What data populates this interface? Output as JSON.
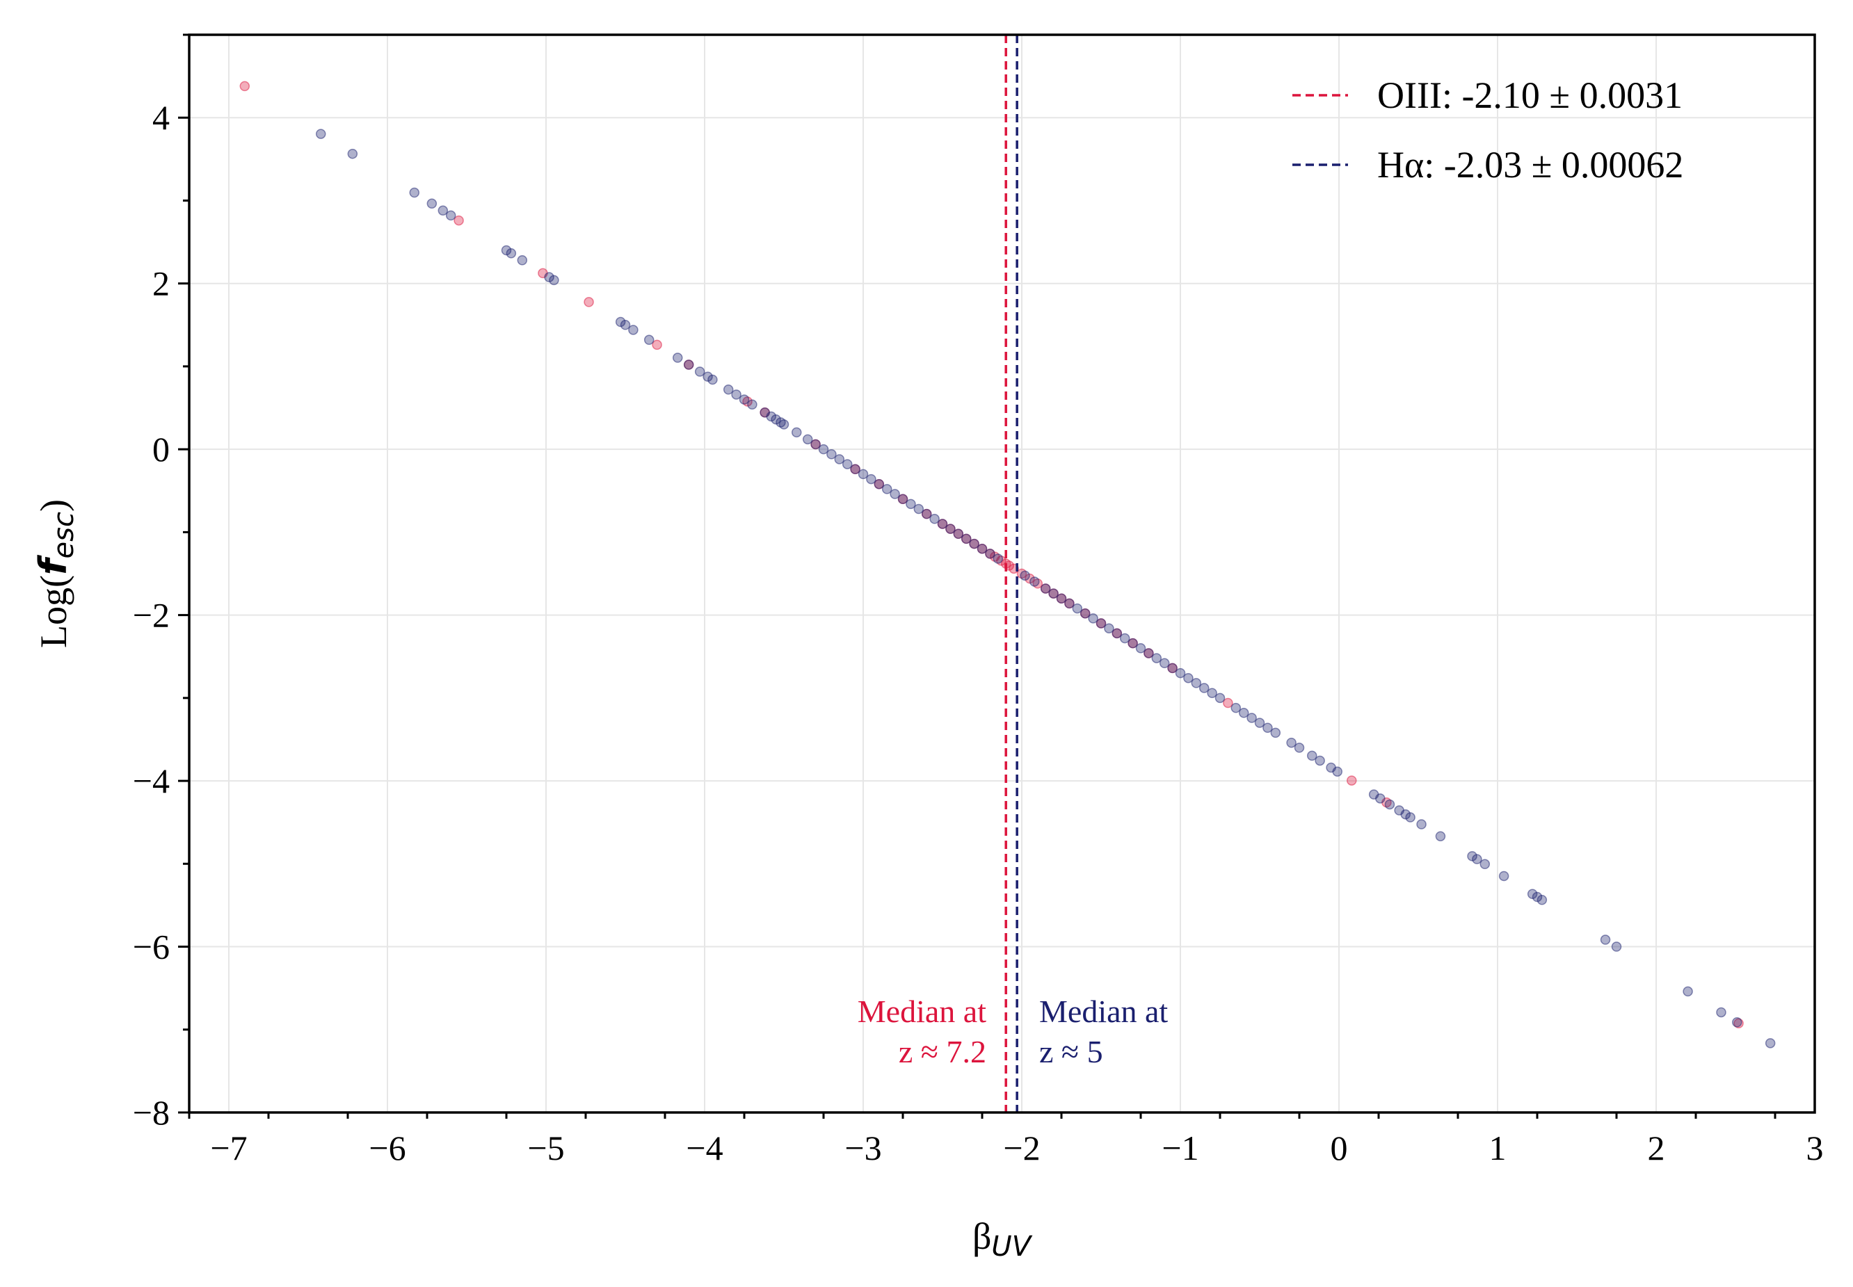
{
  "chart_data": {
    "type": "scatter",
    "title": "",
    "xlabel": "β",
    "xlabel_sub": "UV",
    "ylabel": "Log(",
    "ylabel_f": "f",
    "ylabel_sub": "esc",
    "ylabel_close": ")",
    "xlim": [
      -7.25,
      3.0
    ],
    "ylim": [
      -8.0,
      5.0
    ],
    "xticks": [
      -7,
      -6,
      -5,
      -4,
      -3,
      -2,
      -1,
      0,
      1,
      2,
      3
    ],
    "xtick_labels": [
      "−7",
      "−6",
      "−5",
      "−4",
      "−3",
      "−2",
      "−1",
      "0",
      "1",
      "2",
      "3"
    ],
    "yticks": [
      -8,
      -6,
      -4,
      -2,
      0,
      2,
      4
    ],
    "ytick_labels": [
      "−8",
      "−6",
      "−4",
      "−2",
      "0",
      "2",
      "4"
    ],
    "grid": true,
    "legend_position": "top-right",
    "colors": {
      "oiii": "#dc143c",
      "halpha": "#1a1f6e"
    },
    "trend": {
      "slope": -1.2,
      "intercept": -3.9
    },
    "series": [
      {
        "name": "OIII: -2.10 ± 0.0031",
        "color": "#dc143c",
        "x": [
          -6.9,
          -5.55,
          -5.02,
          -4.73,
          -4.3,
          -4.1,
          -3.73,
          -3.62,
          -3.3,
          -3.05,
          -2.9,
          -2.75,
          -2.6,
          -2.5,
          -2.45,
          -2.4,
          -2.35,
          -2.3,
          -2.25,
          -2.2,
          -2.17,
          -2.13,
          -2.1,
          -2.08,
          -2.05,
          -2.0,
          -1.95,
          -1.9,
          -1.85,
          -1.8,
          -1.75,
          -1.7,
          -1.6,
          -1.5,
          -1.4,
          -1.3,
          -1.2,
          -1.05,
          -0.7,
          0.08,
          0.3,
          2.52
        ]
      },
      {
        "name": "Hα: -2.03 ± 0.00062",
        "color": "#1a1f6e",
        "x": [
          -6.42,
          -6.22,
          -5.83,
          -5.72,
          -5.65,
          -5.6,
          -5.25,
          -5.22,
          -5.15,
          -4.98,
          -4.95,
          -4.53,
          -4.5,
          -4.45,
          -4.35,
          -4.17,
          -4.1,
          -4.03,
          -3.98,
          -3.95,
          -3.85,
          -3.8,
          -3.75,
          -3.7,
          -3.62,
          -3.58,
          -3.55,
          -3.52,
          -3.5,
          -3.42,
          -3.35,
          -3.3,
          -3.25,
          -3.2,
          -3.15,
          -3.1,
          -3.05,
          -3.0,
          -2.95,
          -2.9,
          -2.85,
          -2.8,
          -2.75,
          -2.7,
          -2.65,
          -2.6,
          -2.55,
          -2.5,
          -2.45,
          -2.4,
          -2.35,
          -2.3,
          -2.25,
          -2.2,
          -2.15,
          -1.98,
          -1.92,
          -1.85,
          -1.8,
          -1.75,
          -1.7,
          -1.65,
          -1.6,
          -1.55,
          -1.5,
          -1.45,
          -1.4,
          -1.35,
          -1.3,
          -1.25,
          -1.2,
          -1.15,
          -1.1,
          -1.05,
          -1.0,
          -0.95,
          -0.9,
          -0.85,
          -0.8,
          -0.75,
          -0.65,
          -0.6,
          -0.55,
          -0.5,
          -0.45,
          -0.4,
          -0.3,
          -0.25,
          -0.17,
          -0.12,
          -0.05,
          -0.01,
          0.22,
          0.26,
          0.32,
          0.38,
          0.42,
          0.45,
          0.52,
          0.64,
          0.84,
          0.87,
          0.92,
          1.04,
          1.22,
          1.25,
          1.28,
          1.68,
          1.75,
          2.2,
          2.41,
          2.51,
          2.72
        ]
      }
    ],
    "vlines": [
      {
        "x": -2.1,
        "color": "#dc143c",
        "label": "OIII: -2.10 ± 0.0031"
      },
      {
        "x": -2.03,
        "color": "#1a1f6e",
        "label": "Hα: -2.03 ± 0.00062"
      }
    ],
    "annotations": [
      {
        "line1": "Median at",
        "line2": "z ≈ 7.2",
        "color": "#dc143c"
      },
      {
        "line1": "Median at",
        "line2": "z ≈ 5",
        "color": "#1a1f6e"
      }
    ]
  }
}
